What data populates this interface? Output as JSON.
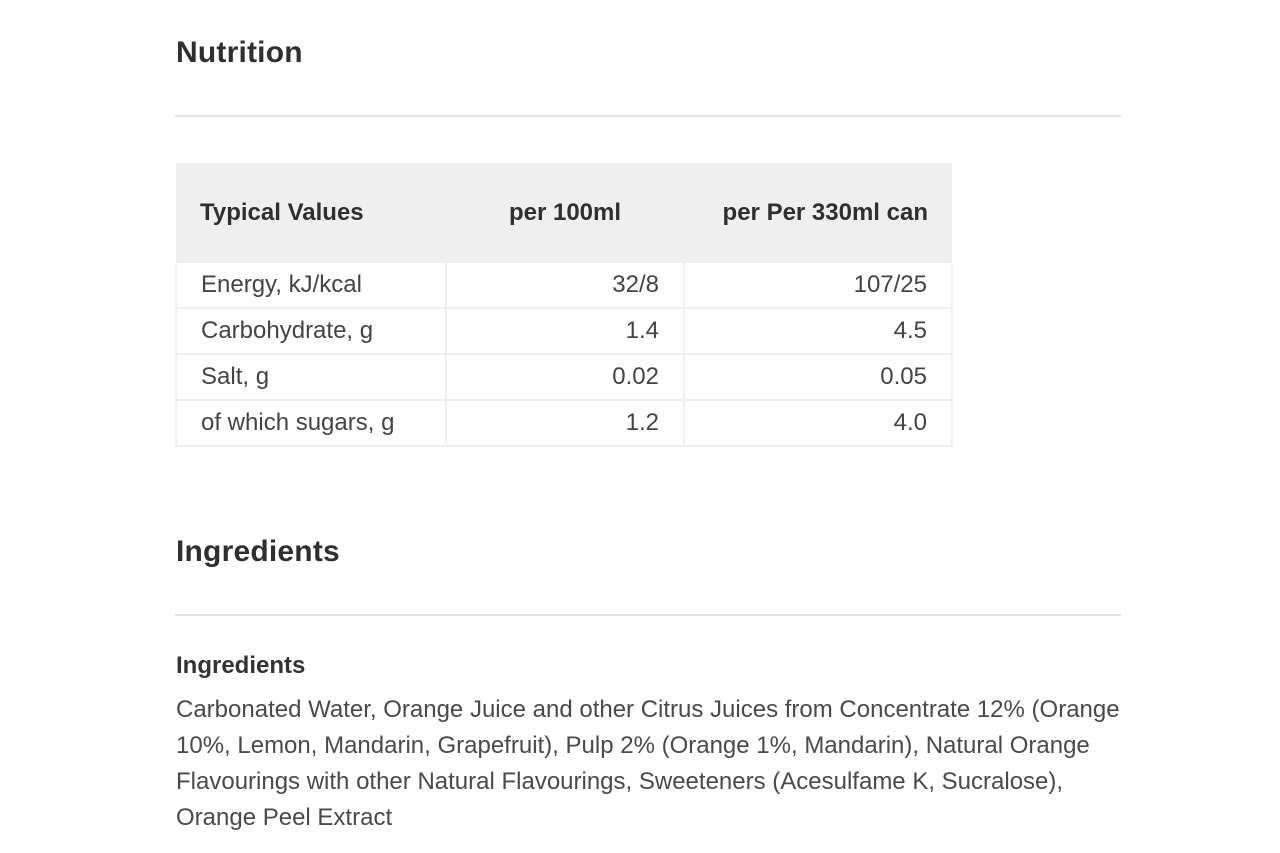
{
  "nutrition": {
    "title": "Nutrition",
    "columns": [
      "Typical Values",
      "per 100ml",
      "per Per 330ml can"
    ],
    "rows": [
      {
        "label": "Energy, kJ/kcal",
        "per_100ml": "32/8",
        "per_can": "107/25"
      },
      {
        "label": "Carbohydrate, g",
        "per_100ml": "1.4",
        "per_can": "4.5"
      },
      {
        "label": "Salt, g",
        "per_100ml": "0.02",
        "per_can": "0.05"
      },
      {
        "label": "of which sugars, g",
        "per_100ml": "1.2",
        "per_can": "4.0"
      }
    ]
  },
  "ingredients": {
    "title": "Ingredients",
    "subtitle": "Ingredients",
    "text": "Carbonated Water, Orange Juice and other Citrus Juices from Concentrate 12% (Orange 10%, Lemon, Mandarin, Grapefruit), Pulp 2% (Orange 1%, Mandarin), Natural Orange Flavourings with other Natural Flavourings, Sweeteners (Acesulfame K, Sucralose), Orange Peel Extract"
  }
}
